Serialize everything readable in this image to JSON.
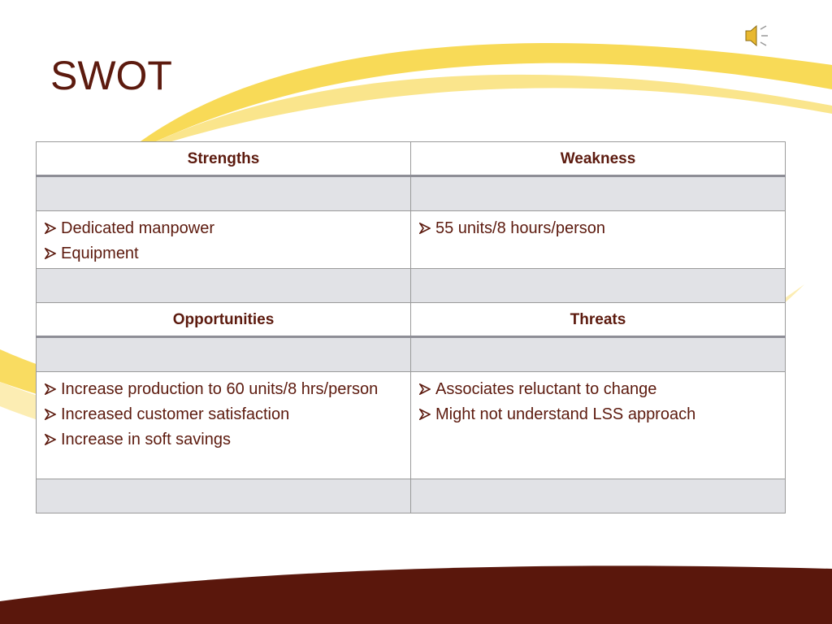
{
  "title": "SWOT",
  "table": {
    "sections": [
      {
        "headers": [
          "Strengths",
          "Weakness"
        ],
        "cells": [
          [
            "Dedicated manpower",
            "Equipment"
          ],
          [
            "55 units/8 hours/person"
          ]
        ]
      },
      {
        "headers": [
          "Opportunities",
          "Threats"
        ],
        "cells": [
          [
            "Increase production to 60 units/8 hrs/person",
            "Increased customer satisfaction",
            "Increase in soft savings"
          ],
          [
            "Associates reluctant to change",
            "Might not understand LSS approach"
          ]
        ]
      }
    ]
  }
}
